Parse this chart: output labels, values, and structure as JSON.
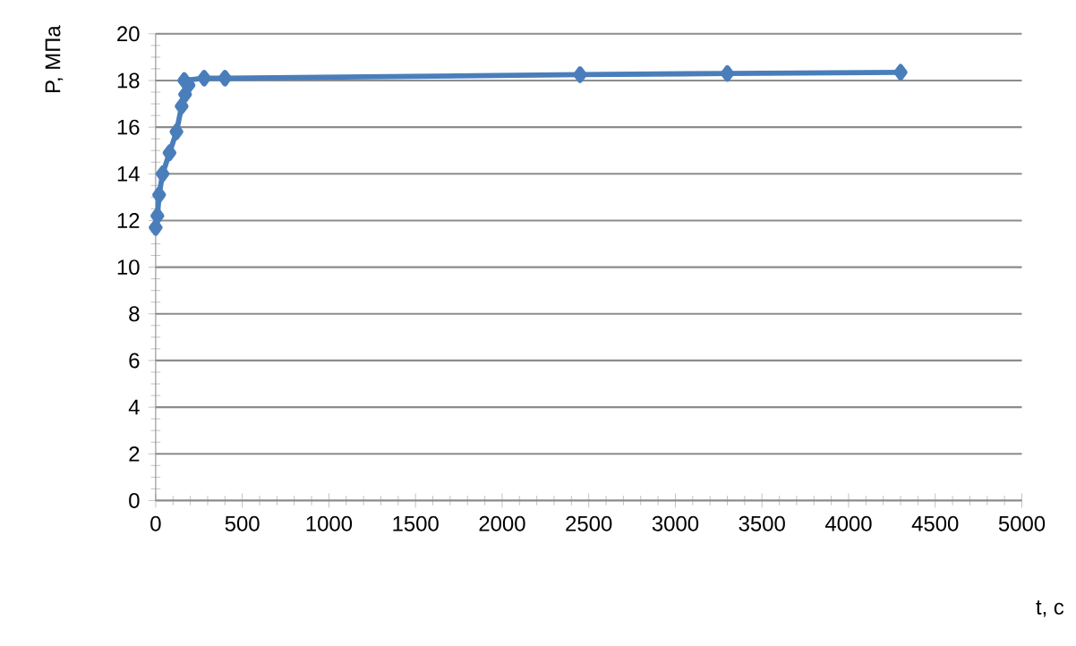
{
  "chart_data": {
    "type": "line",
    "xlabel": "t, с",
    "ylabel": "P, МПа",
    "x": [
      0,
      10,
      20,
      40,
      80,
      120,
      150,
      170,
      190,
      165,
      280,
      400,
      2450,
      3300,
      4300
    ],
    "values": [
      11.7,
      12.2,
      13.1,
      14.0,
      14.9,
      15.8,
      16.9,
      17.4,
      17.8,
      18.0,
      18.1,
      18.1,
      18.25,
      18.3,
      18.35
    ],
    "color": "#4a7ebb",
    "marker": "diamond",
    "line_style": "solid",
    "grid": "y",
    "xlim": [
      0,
      5000
    ],
    "xticks": [
      0,
      500,
      1000,
      1500,
      2000,
      2500,
      3000,
      3500,
      4000,
      4500,
      5000
    ],
    "ylim": [
      0,
      20
    ],
    "yticks": [
      0,
      2,
      4,
      6,
      8,
      10,
      12,
      14,
      16,
      18,
      20
    ]
  }
}
